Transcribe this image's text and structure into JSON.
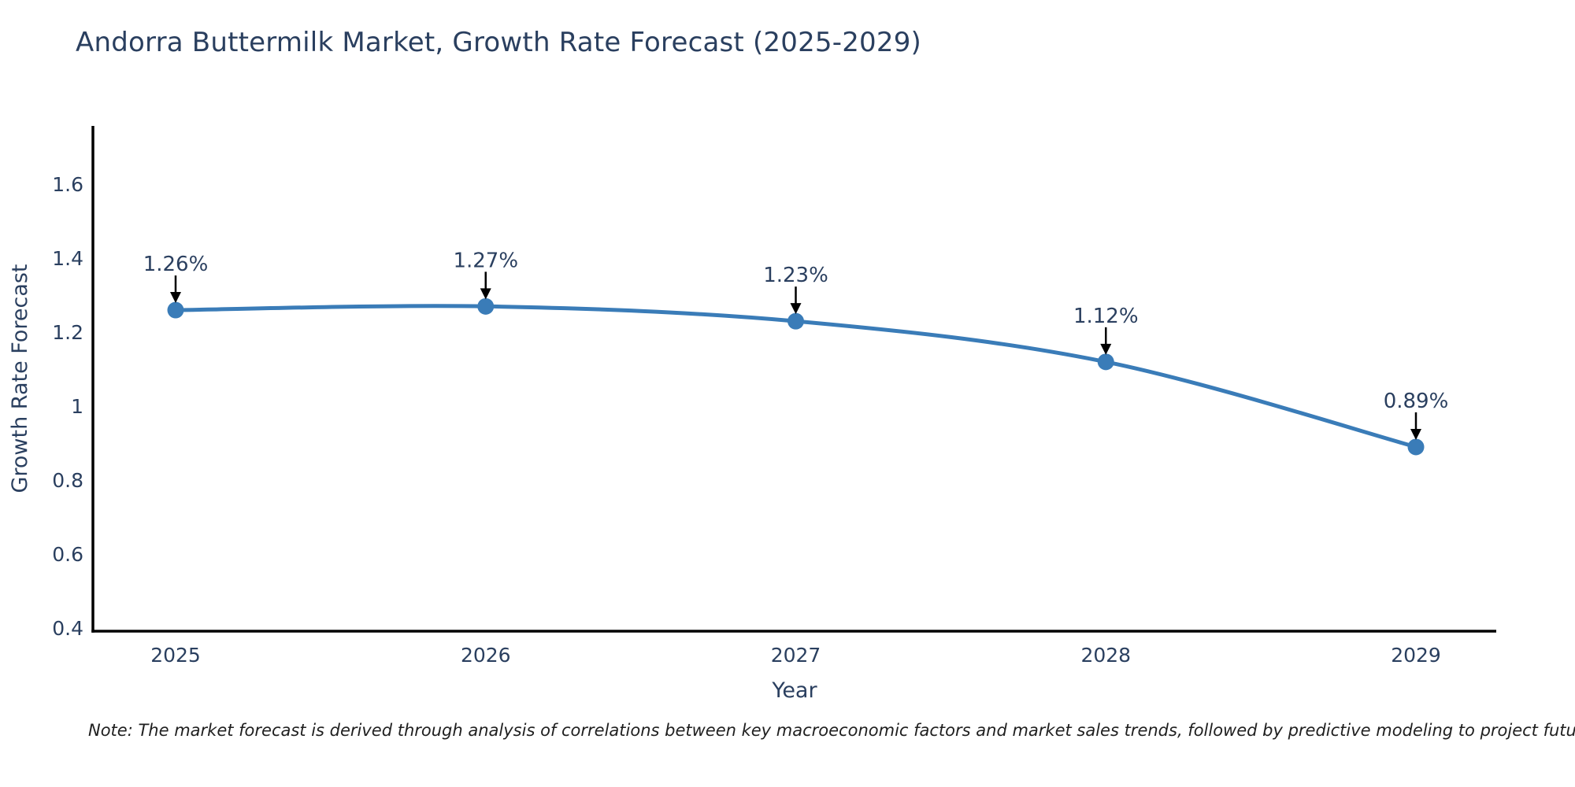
{
  "title": "Andorra Buttermilk Market, Growth Rate Forecast (2025-2029)",
  "note": "Note: The market forecast is derived through analysis of correlations between key macroeconomic factors and market sales trends, followed by predictive modeling to project future sales",
  "chart_data": {
    "type": "line",
    "title": "Andorra Buttermilk Market, Growth Rate Forecast (2025-2029)",
    "xlabel": "Year",
    "ylabel": "Growth Rate Forecast",
    "x": [
      2025,
      2026,
      2027,
      2028,
      2029
    ],
    "y": [
      1.26,
      1.27,
      1.23,
      1.12,
      0.89
    ],
    "point_labels": [
      "1.26%",
      "1.27%",
      "1.23%",
      "1.12%",
      "0.89%"
    ],
    "xtick_labels": [
      "2025",
      "2026",
      "2027",
      "2028",
      "2029"
    ],
    "ytick_values": [
      0.4,
      0.6,
      0.8,
      1,
      1.2,
      1.4,
      1.6
    ],
    "ytick_labels": [
      "0.4",
      "0.6",
      "0.8",
      "1",
      "1.2",
      "1.4",
      "1.6"
    ],
    "ylim": [
      0.392,
      1.757
    ],
    "grid": false,
    "legend": "none",
    "line_shape": "spline",
    "colors": {
      "line": "#3a7cb8",
      "marker": "#3a7cb8",
      "axis_line": "#000000",
      "text": "#2a3f5f",
      "annotation_text": "#2a3f5f",
      "arrow": "#000000",
      "background": "#ffffff"
    }
  }
}
